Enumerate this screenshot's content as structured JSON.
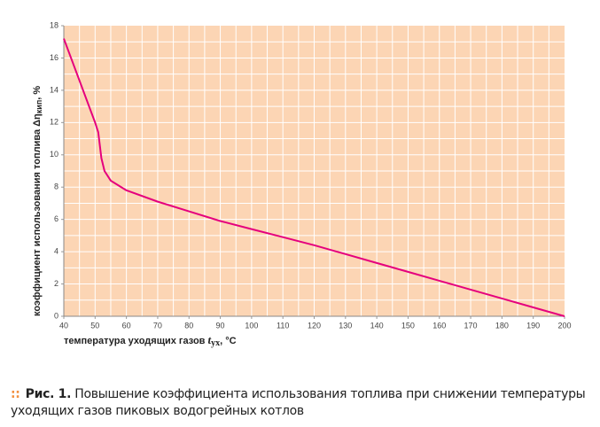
{
  "chart_data": {
    "type": "line",
    "x_label": "температура уходящих газов ",
    "x_label_var": "t",
    "x_label_sub": "ух",
    "x_label_end": ", °C",
    "y_label": "коэффициент использования топлива Δη",
    "y_label_sub": "кип",
    "y_label_end": ", %",
    "x": [
      40,
      45,
      50,
      51,
      52,
      53,
      55,
      60,
      70,
      80,
      90,
      100,
      110,
      120,
      130,
      140,
      150,
      160,
      170,
      180,
      190,
      200
    ],
    "series": [
      {
        "color": "#e5007d",
        "values": [
          17.2,
          14.6,
          12.0,
          11.4,
          9.8,
          9.0,
          8.4,
          7.8,
          7.1,
          6.5,
          5.9,
          5.4,
          4.9,
          4.4,
          3.85,
          3.3,
          2.75,
          2.2,
          1.65,
          1.1,
          0.55,
          0
        ]
      }
    ],
    "xlim": [
      40,
      200
    ],
    "ylim": [
      0,
      18
    ],
    "xticks": [
      40,
      50,
      60,
      70,
      80,
      90,
      100,
      110,
      120,
      130,
      140,
      150,
      160,
      170,
      180,
      190,
      200
    ],
    "yticks": [
      0,
      2,
      4,
      6,
      8,
      10,
      12,
      14,
      16,
      18
    ],
    "grid": true,
    "grid_step_x": 5,
    "grid_step_y": 1,
    "background": "#fcd5b4"
  },
  "caption": {
    "label": "Рис. 1.",
    "text": " Повышение коэффициента использования топлива при снижении температуры уходящих газов пиковых водогрейных котлов"
  }
}
